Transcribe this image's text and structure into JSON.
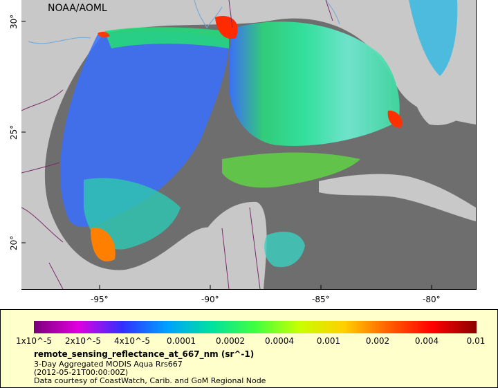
{
  "map": {
    "credit": "NOAA/AOML",
    "lon_labels": [
      "-95°",
      "-90°",
      "-85°",
      "-80°"
    ],
    "lat_labels": [
      "30°",
      "25°",
      "20°"
    ],
    "colors": {
      "land": "#c8c8c8",
      "no_data": "#6e6e6e",
      "river": "#6fa6d6",
      "border": "#7a2a6a",
      "frame": "#000000"
    }
  },
  "legend": {
    "colorbar_stops": [
      "#7a007a",
      "#e000e0",
      "#3030ff",
      "#00a0ff",
      "#00e0a0",
      "#40ff40",
      "#c8ff00",
      "#ffd000",
      "#ff6000",
      "#ff0000",
      "#8a0000"
    ],
    "tick_labels": [
      "1x10^-5",
      "2x10^-5",
      "4x10^-5",
      "0.0001",
      "0.0002",
      "0.0004",
      "0.001",
      "0.002",
      "0.004",
      "0.01"
    ],
    "variable": "remote_sensing_reflectance_at_667_nm (sr^-1)",
    "product": "3-Day Aggregated MODIS Aqua Rrs667",
    "date": "(2012-05-21T00:00:00Z)",
    "source": "Data courtesy of CoastWatch, Carib. and GoM Regional Node"
  }
}
